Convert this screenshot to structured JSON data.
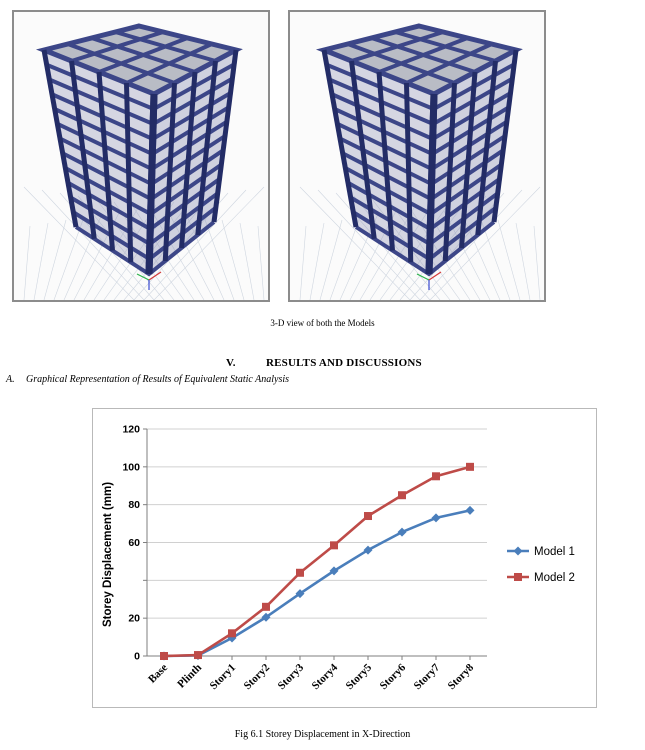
{
  "figures": {
    "caption": "3-D view of both the Models",
    "colors": {
      "frame": "#3c4688",
      "frame_dark": "#232c66",
      "slab": "#a9acb8",
      "grid": "#cfd6e0"
    }
  },
  "section": {
    "number": "V.",
    "title": "RESULTS AND DISCUSSIONS"
  },
  "subsection": {
    "letter": "A.",
    "title": "Graphical Representation of Results of Equivalent Static Analysis"
  },
  "chart_data": {
    "type": "line",
    "title": "",
    "xlabel": "",
    "ylabel": "Storey Displacement (mm)",
    "categories": [
      "Base",
      "Plinth",
      "Story1",
      "Story2",
      "Story3",
      "Story4",
      "Story5",
      "Story6",
      "Story7",
      "Story8"
    ],
    "y_ticks": [
      "0",
      "20",
      "",
      "60",
      "80",
      "100",
      "120"
    ],
    "ylim": [
      0,
      120
    ],
    "grid": true,
    "legend": "right",
    "series": [
      {
        "name": "Model 1",
        "color": "#4a7ebb",
        "marker": "diamond",
        "values": [
          0,
          0.3,
          9.5,
          20.5,
          33,
          45,
          56,
          65.5,
          73,
          77
        ]
      },
      {
        "name": "Model 2",
        "color": "#be4b48",
        "marker": "square",
        "values": [
          0,
          0.5,
          12,
          26,
          44,
          58.5,
          74,
          85,
          95,
          100
        ]
      }
    ]
  },
  "chart_caption": "Fig 6.1 Storey Displacement in X-Direction"
}
